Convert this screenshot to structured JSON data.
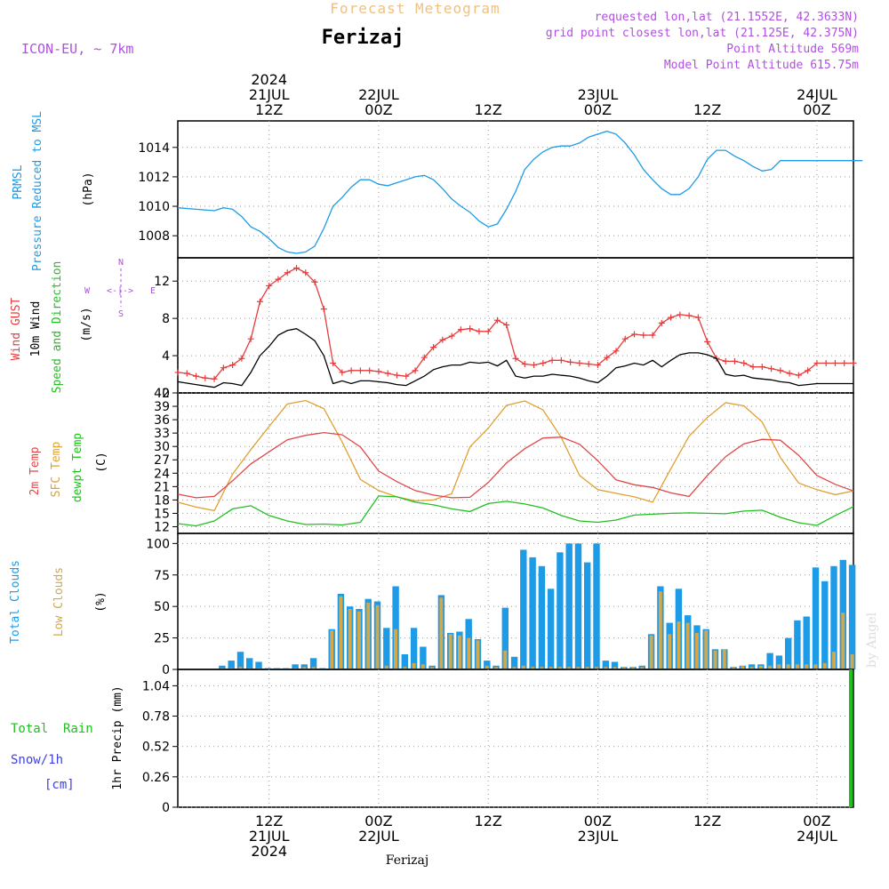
{
  "header": {
    "forecast_title": "Forecast Meteogram",
    "location": "Ferizaj",
    "model": "ICON-EU, ~ 7km",
    "requested": "requested lon,lat (21.1552E, 42.3633N)",
    "grid": "grid point closest lon,lat (21.125E, 42.375N)",
    "point_alt": "Point Altitude 569m",
    "model_alt": "Model Point Altitude 615.75m",
    "watermark": "by Angel",
    "footer_location": "Ferizaj"
  },
  "time_axis": {
    "top": [
      {
        "h": 12,
        "lines": [
          "2024",
          "21JUL",
          "12Z"
        ]
      },
      {
        "h": 24,
        "lines": [
          "22JUL",
          "00Z"
        ]
      },
      {
        "h": 36,
        "lines": [
          "12Z"
        ]
      },
      {
        "h": 48,
        "lines": [
          "23JUL",
          "00Z"
        ]
      },
      {
        "h": 60,
        "lines": [
          "12Z"
        ]
      },
      {
        "h": 72,
        "lines": [
          "24JUL",
          "00Z"
        ]
      }
    ],
    "bottom": [
      {
        "h": 12,
        "lines": [
          "12Z",
          "21JUL",
          "2024"
        ]
      },
      {
        "h": 24,
        "lines": [
          "00Z",
          "22JUL"
        ]
      },
      {
        "h": 36,
        "lines": [
          "12Z"
        ]
      },
      {
        "h": 48,
        "lines": [
          "00Z",
          "23JUL"
        ]
      },
      {
        "h": 60,
        "lines": [
          "12Z"
        ]
      },
      {
        "h": 72,
        "lines": [
          "00Z",
          "24JUL"
        ]
      }
    ]
  },
  "panel_labels": {
    "prmsl": {
      "l1": "PRMSL",
      "l2": "Pressure Reduced to MSL",
      "unit": "(hPa)"
    },
    "wind": {
      "l1": "Wind GUST",
      "l2": "10m Wind",
      "l3": "Speed and Direction",
      "unit": "(m/s)",
      "compass_n": "N",
      "compass_s": "S",
      "compass_w": "W",
      "compass_e": "E",
      "compass_mid": "<-|->"
    },
    "temp": {
      "l1": "2m Temp",
      "l2": "SFC Temp",
      "l3": "dewpt Temp",
      "unit": "(C)"
    },
    "clouds": {
      "l1": "Total Clouds",
      "l2": "Low Clouds",
      "unit": "(%)"
    },
    "precip": {
      "l1": "Total  Rain",
      "l2": "Snow/1h",
      "l3": "[cm]",
      "unit": "1hr Precip (mm)"
    }
  },
  "colors": {
    "pressure": "#1e9be6",
    "gust": "#e83c3c",
    "wind": "#000000",
    "sfc": "#e0a030",
    "t2m": "#e04848",
    "dew": "#20c020",
    "total_cloud": "#1e9be6",
    "low_cloud": "#d4a84a",
    "rain": "#20c020",
    "snow": "#4040e0",
    "title_orange": "#f0c080",
    "purple": "#b050e0"
  },
  "chart_data": [
    {
      "type": "line",
      "name": "prmsl",
      "ylabel": "Pressure Reduced to MSL (hPa)",
      "ylim": [
        1006.5,
        1015.8
      ],
      "yticks": [
        1008,
        1010,
        1012,
        1014
      ],
      "series": [
        {
          "color": "#1e9be6",
          "x": [
            2,
            4,
            6,
            7,
            8,
            9,
            10,
            11,
            12,
            13,
            14,
            15,
            16,
            17,
            18,
            19,
            20,
            21,
            22,
            23,
            24,
            25,
            26,
            27,
            28,
            29,
            30,
            31,
            32,
            33,
            34,
            35,
            36,
            37,
            38,
            39,
            40,
            41,
            42,
            43,
            44,
            45,
            46,
            47,
            48,
            49,
            50,
            51,
            52,
            53,
            54,
            55,
            56,
            57,
            58,
            59,
            60,
            61,
            62,
            63,
            64,
            65,
            66,
            67,
            68,
            69,
            70,
            71,
            72,
            73,
            74,
            75,
            76,
            77
          ],
          "y": [
            1009.9,
            1009.8,
            1009.7,
            1009.9,
            1009.8,
            1009.3,
            1008.6,
            1008.3,
            1007.8,
            1007.2,
            1006.9,
            1006.8,
            1006.9,
            1007.3,
            1008.5,
            1010.0,
            1010.6,
            1011.3,
            1011.8,
            1011.8,
            1011.5,
            1011.4,
            1011.6,
            1011.8,
            1012.0,
            1012.1,
            1011.8,
            1011.2,
            1010.5,
            1010.0,
            1009.6,
            1009.0,
            1008.6,
            1008.8,
            1009.8,
            1011.0,
            1012.5,
            1013.2,
            1013.7,
            1014.0,
            1014.1,
            1014.1,
            1014.3,
            1014.7,
            1014.9,
            1015.1,
            1014.9,
            1014.3,
            1013.5,
            1012.5,
            1011.8,
            1011.2,
            1010.8,
            1010.8,
            1011.2,
            1012.0,
            1013.2,
            1013.8,
            1013.8,
            1013.4,
            1013.1,
            1012.7,
            1012.4,
            1012.5,
            1013.1,
            1013.1,
            1013.1,
            1013.1,
            1013.1,
            1013.1,
            1013.1,
            1013.1,
            1013.1,
            1013.1
          ]
        }
      ]
    },
    {
      "type": "line",
      "name": "wind",
      "ylabel": "(m/s)",
      "ylim": [
        0,
        14.5
      ],
      "yticks": [
        0,
        4,
        8,
        12
      ],
      "series": [
        {
          "color": "#e83c3c",
          "marker": "+",
          "x": [
            2,
            3,
            4,
            5,
            6,
            7,
            8,
            9,
            10,
            11,
            12,
            13,
            14,
            15,
            16,
            17,
            18,
            19,
            20,
            21,
            22,
            23,
            24,
            25,
            26,
            27,
            28,
            29,
            30,
            31,
            32,
            33,
            34,
            35,
            36,
            37,
            38,
            39,
            40,
            41,
            42,
            43,
            44,
            45,
            46,
            47,
            48,
            49,
            50,
            51,
            52,
            53,
            54,
            55,
            56,
            57,
            58,
            59,
            60,
            61,
            62,
            63,
            64,
            65,
            66,
            67,
            68,
            69,
            70,
            71,
            72,
            73,
            74,
            75,
            76
          ],
          "y": [
            2.2,
            2.1,
            1.8,
            1.6,
            1.5,
            2.7,
            3.0,
            3.7,
            5.8,
            9.8,
            11.5,
            12.2,
            12.9,
            13.4,
            12.9,
            11.9,
            9.0,
            3.2,
            2.2,
            2.4,
            2.4,
            2.4,
            2.3,
            2.1,
            1.9,
            1.8,
            2.4,
            3.8,
            4.9,
            5.7,
            6.1,
            6.8,
            6.9,
            6.6,
            6.6,
            7.8,
            7.3,
            3.7,
            3.1,
            3.0,
            3.2,
            3.5,
            3.5,
            3.3,
            3.2,
            3.1,
            3.0,
            3.8,
            4.5,
            5.8,
            6.3,
            6.2,
            6.2,
            7.5,
            8.1,
            8.4,
            8.3,
            8.1,
            5.5,
            3.7,
            3.4,
            3.4,
            3.2,
            2.8,
            2.8,
            2.6,
            2.4,
            2.1,
            1.9,
            2.4,
            3.2,
            3.2,
            3.2,
            3.2,
            3.2
          ]
        },
        {
          "color": "#000000",
          "x": [
            2,
            4,
            6,
            7,
            8,
            9,
            10,
            11,
            12,
            13,
            14,
            15,
            16,
            17,
            18,
            19,
            20,
            21,
            22,
            23,
            24,
            25,
            26,
            27,
            28,
            29,
            30,
            31,
            32,
            33,
            34,
            35,
            36,
            37,
            38,
            39,
            40,
            41,
            42,
            43,
            44,
            45,
            46,
            47,
            48,
            49,
            50,
            51,
            52,
            53,
            54,
            55,
            56,
            57,
            58,
            59,
            60,
            61,
            62,
            63,
            64,
            65,
            66,
            67,
            68,
            69,
            70,
            71,
            72,
            73,
            74,
            75,
            76
          ],
          "y": [
            1.2,
            0.9,
            0.6,
            1.1,
            1.0,
            0.8,
            2.2,
            4.0,
            5.0,
            6.2,
            6.7,
            6.9,
            6.3,
            5.6,
            4.0,
            1.0,
            1.3,
            1.0,
            1.3,
            1.3,
            1.2,
            1.1,
            0.9,
            0.8,
            1.3,
            1.8,
            2.5,
            2.8,
            3.0,
            3.0,
            3.3,
            3.2,
            3.3,
            2.9,
            3.5,
            1.8,
            1.6,
            1.8,
            1.8,
            2.0,
            1.9,
            1.8,
            1.6,
            1.3,
            1.1,
            1.8,
            2.7,
            2.9,
            3.2,
            3.0,
            3.5,
            2.8,
            3.5,
            4.1,
            4.3,
            4.3,
            4.1,
            3.7,
            2.0,
            1.8,
            1.9,
            1.6,
            1.5,
            1.4,
            1.2,
            1.1,
            0.8,
            0.9,
            1.0,
            1.0,
            1.0,
            1.0,
            1.0
          ]
        }
      ]
    },
    {
      "type": "line",
      "name": "temperature",
      "ylabel": "(C)",
      "ylim": [
        10.5,
        42
      ],
      "yticks": [
        12,
        15,
        18,
        21,
        24,
        27,
        30,
        33,
        36,
        39,
        42
      ],
      "series": [
        {
          "color": "#e0a030",
          "x": [
            2,
            4,
            6,
            8,
            10,
            12,
            14,
            16,
            18,
            20,
            22,
            24,
            26,
            28,
            30,
            32,
            34,
            36,
            38,
            40,
            42,
            44,
            46,
            48,
            50,
            52,
            54,
            56,
            58,
            60,
            62,
            64,
            66,
            68,
            70,
            72,
            74,
            76
          ],
          "y": [
            17.5,
            16.4,
            15.6,
            23.8,
            29.3,
            34.5,
            39.5,
            40.3,
            38.5,
            31.0,
            22.6,
            20.1,
            18.7,
            17.8,
            18.0,
            19.4,
            29.9,
            34.1,
            39.2,
            40.2,
            38.2,
            32.0,
            23.5,
            20.3,
            19.5,
            18.7,
            17.5,
            25.0,
            32.3,
            36.5,
            39.8,
            39.1,
            35.5,
            27.5,
            21.8,
            20.3,
            19.2,
            20.0
          ]
        },
        {
          "color": "#e04848",
          "x": [
            2,
            4,
            6,
            8,
            10,
            12,
            14,
            16,
            18,
            20,
            22,
            24,
            26,
            28,
            30,
            32,
            34,
            36,
            38,
            40,
            42,
            44,
            46,
            48,
            50,
            52,
            54,
            56,
            58,
            60,
            62,
            64,
            66,
            68,
            70,
            72,
            74,
            76
          ],
          "y": [
            19.3,
            18.5,
            18.8,
            22.3,
            26.1,
            28.8,
            31.5,
            32.5,
            33.1,
            32.6,
            29.9,
            24.5,
            22.1,
            20.1,
            19.1,
            18.5,
            18.6,
            21.9,
            26.3,
            29.5,
            31.9,
            32.1,
            30.5,
            26.8,
            22.5,
            21.4,
            20.8,
            19.6,
            18.8,
            23.5,
            27.7,
            30.6,
            31.6,
            31.4,
            28.0,
            23.5,
            21.5,
            20.0
          ]
        },
        {
          "color": "#20c020",
          "x": [
            2,
            4,
            6,
            8,
            10,
            12,
            14,
            16,
            18,
            20,
            22,
            24,
            26,
            28,
            30,
            32,
            34,
            36,
            38,
            40,
            42,
            44,
            46,
            48,
            50,
            52,
            54,
            56,
            58,
            60,
            62,
            64,
            66,
            68,
            70,
            72,
            74,
            76
          ],
          "y": [
            12.7,
            12.2,
            13.3,
            16.0,
            16.7,
            14.5,
            13.3,
            12.5,
            12.6,
            12.4,
            13.0,
            18.9,
            18.7,
            17.5,
            16.9,
            16.0,
            15.4,
            17.2,
            17.7,
            17.1,
            16.2,
            14.5,
            13.3,
            13.0,
            13.5,
            14.6,
            14.8,
            15.0,
            15.1,
            15.0,
            14.9,
            15.5,
            15.7,
            14.1,
            12.9,
            12.3,
            14.5,
            16.5
          ]
        }
      ]
    },
    {
      "type": "bar",
      "name": "clouds",
      "ylabel": "(%)",
      "ylim": [
        0,
        108
      ],
      "yticks": [
        0,
        25,
        50,
        75,
        100
      ],
      "x": [
        7,
        8,
        9,
        10,
        11,
        12,
        13,
        14,
        15,
        16,
        17,
        18,
        19,
        20,
        21,
        22,
        23,
        24,
        25,
        26,
        27,
        28,
        29,
        30,
        31,
        32,
        33,
        34,
        35,
        36,
        37,
        38,
        39,
        40,
        41,
        42,
        43,
        44,
        45,
        46,
        47,
        48,
        49,
        50,
        51,
        52,
        53,
        54,
        55,
        56,
        57,
        58,
        59,
        60,
        61,
        62,
        63,
        64,
        65,
        66,
        67,
        68,
        69,
        70,
        71,
        72,
        73,
        74,
        75,
        76
      ],
      "series": [
        {
          "color": "#1e9be6",
          "name": "Total Clouds",
          "values": [
            3,
            7,
            14,
            9,
            6,
            1,
            1,
            1,
            4,
            4,
            9,
            1,
            32,
            60,
            50,
            48,
            56,
            54,
            33,
            66,
            12,
            33,
            18,
            3,
            59,
            29,
            30,
            40,
            24,
            7,
            3,
            49,
            10,
            95,
            89,
            82,
            64,
            93,
            100,
            100,
            85,
            100,
            7,
            6,
            2,
            2,
            3,
            28,
            66,
            37,
            64,
            43,
            35,
            32,
            16,
            16,
            2,
            3,
            4,
            4,
            13,
            11,
            25,
            39,
            42,
            81,
            70,
            82,
            87,
            83
          ]
        },
        {
          "color": "#d4a84a",
          "name": "Low Clouds",
          "values": [
            1,
            1,
            2,
            1,
            1,
            0,
            0,
            0,
            1,
            2,
            2,
            0,
            31,
            58,
            48,
            46,
            53,
            51,
            3,
            32,
            2,
            5,
            4,
            2,
            57,
            28,
            27,
            25,
            23,
            3,
            2,
            15,
            2,
            3,
            2,
            2,
            2,
            2,
            2,
            2,
            2,
            2,
            2,
            2,
            2,
            2,
            2,
            27,
            62,
            28,
            38,
            37,
            29,
            31,
            15,
            16,
            2,
            3,
            2,
            3,
            3,
            4,
            4,
            4,
            4,
            4,
            5,
            14,
            45,
            12
          ]
        }
      ]
    },
    {
      "type": "bar",
      "name": "precipitation",
      "ylabel": "1hr Precip (mm)",
      "ylim": [
        0,
        1.18
      ],
      "yticks": [
        0,
        0.26,
        0.52,
        0.78,
        1.04
      ],
      "ytick_labels": [
        "0",
        "0.26",
        "0.52",
        "0.78",
        "1.04"
      ],
      "x": [
        76
      ],
      "series": [
        {
          "color": "#20c020",
          "name": "Total  Rain",
          "values": [
            1.18
          ]
        }
      ]
    }
  ]
}
